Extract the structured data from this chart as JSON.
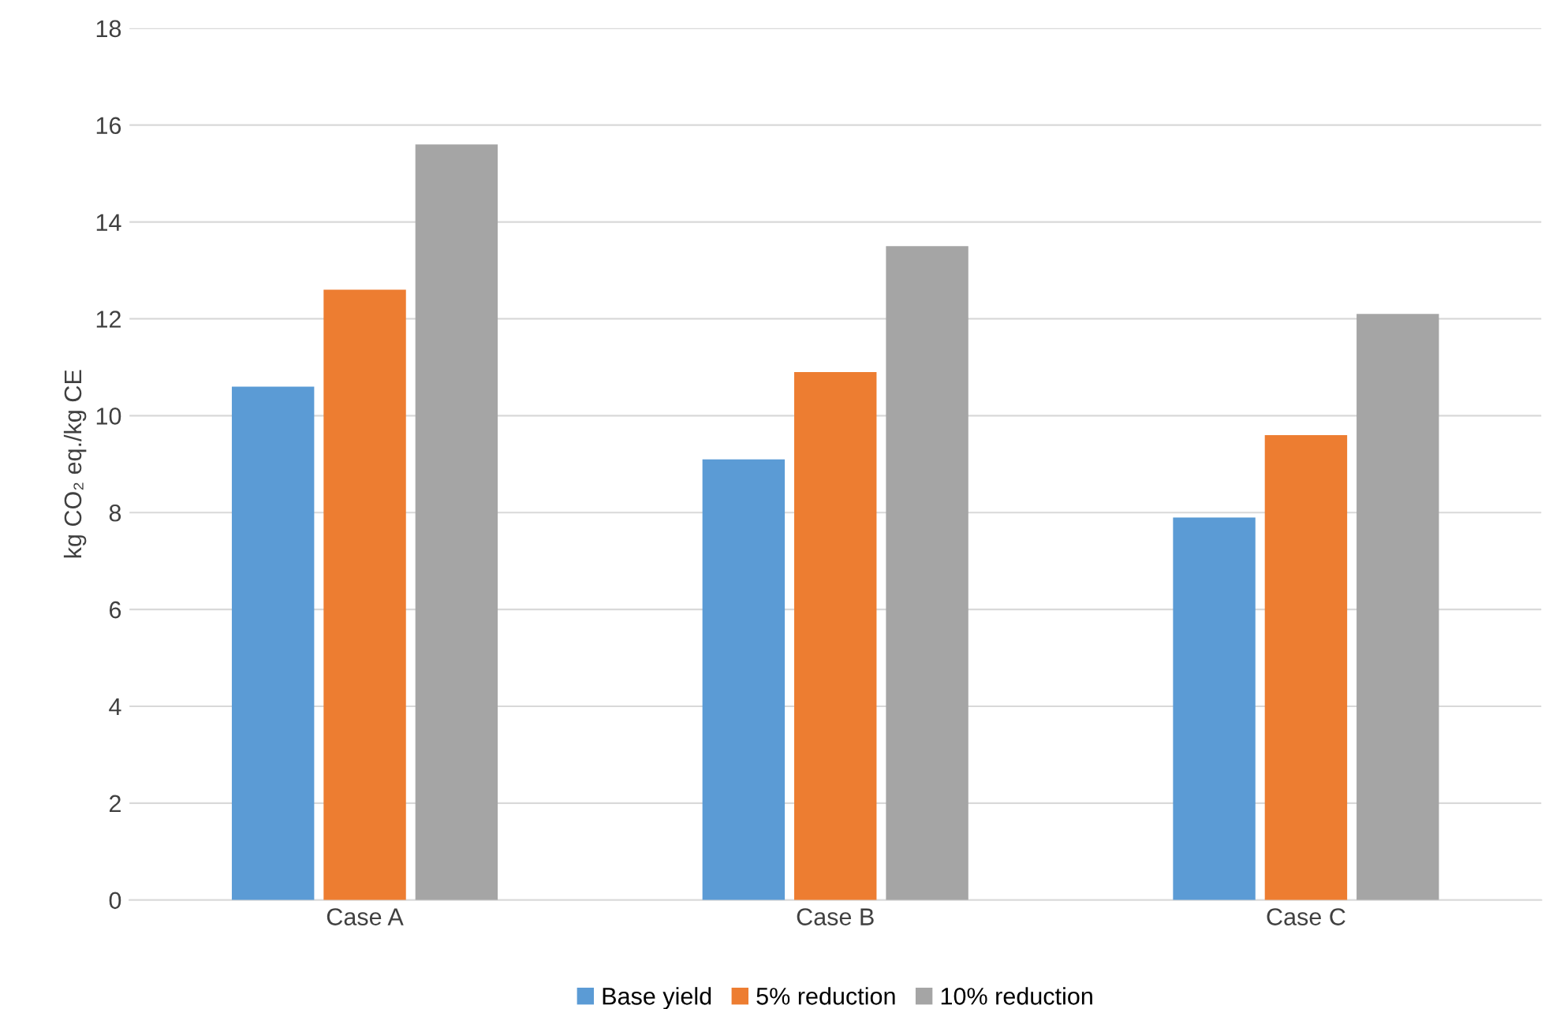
{
  "chart_data": {
    "type": "bar",
    "ylabel": "kg CO₂ eq./kg CE",
    "categories": [
      "Case A",
      "Case B",
      "Case C"
    ],
    "series": [
      {
        "name": "Base yield",
        "color": "#5b9bd5",
        "values": [
          10.6,
          9.1,
          7.9
        ]
      },
      {
        "name": "5% reduction",
        "color": "#ed7d31",
        "values": [
          12.6,
          10.9,
          9.6
        ]
      },
      {
        "name": "10% reduction",
        "color": "#a5a5a5",
        "values": [
          15.6,
          13.5,
          12.1
        ]
      }
    ],
    "ylim": [
      0,
      18
    ],
    "yticks": [
      0,
      2,
      4,
      6,
      8,
      10,
      12,
      14,
      16,
      18
    ],
    "grid": "y",
    "legend": "bottom"
  }
}
